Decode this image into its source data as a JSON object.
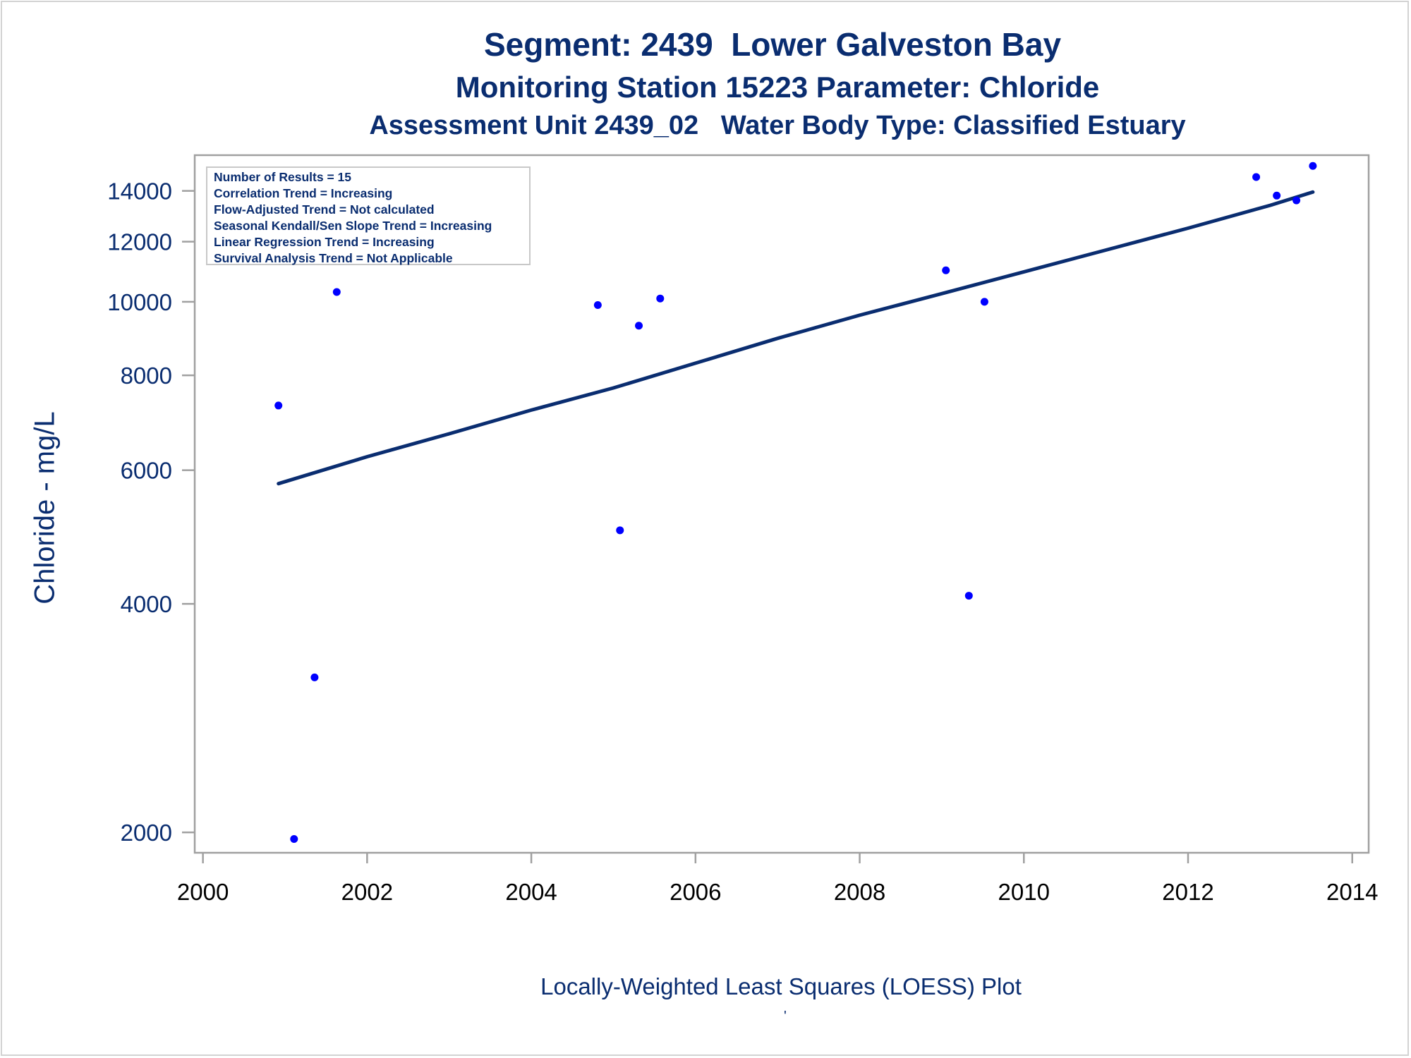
{
  "titles": {
    "line1": "Segment: 2439  Lower Galveston Bay",
    "line2": "Monitoring Station 15223 Parameter: Chloride",
    "line3": "Assessment Unit 2439_02   Water Body Type: Classified Estuary"
  },
  "stats": [
    "Number of Results = 15",
    "Correlation Trend = Increasing",
    "Flow-Adjusted Trend = Not calculated",
    "Seasonal Kendall/Sen Slope Trend = Increasing",
    "Linear Regression Trend = Increasing",
    "Survival Analysis Trend = Not Applicable"
  ],
  "caption": "Locally-Weighted Least Squares (LOESS) Plot",
  "tick_mark": "'",
  "colors": {
    "text": "#0a2d70",
    "points": "#0000ff",
    "line": "#0a2d70",
    "axis": "#a0a0a0"
  },
  "chart_data": {
    "type": "scatter",
    "title": "Segment: 2439  Lower Galveston Bay",
    "xlabel": "",
    "ylabel": "Chloride - mg/L",
    "y_scale": "log",
    "xlim": [
      1999.9,
      2014.2
    ],
    "ylim": [
      1880,
      15600
    ],
    "xticks": [
      2000,
      2002,
      2004,
      2006,
      2008,
      2010,
      2012,
      2014
    ],
    "yticks": [
      2000,
      4000,
      6000,
      8000,
      10000,
      12000,
      14000
    ],
    "grid": false,
    "series": [
      {
        "type": "scatter",
        "x": [
          2000.92,
          2001.11,
          2001.36,
          2001.63,
          2004.81,
          2005.08,
          2005.31,
          2005.57,
          2009.05,
          2009.33,
          2009.52,
          2012.83,
          2013.08,
          2013.32,
          2013.52
        ],
        "y": [
          7300,
          1960,
          3200,
          10300,
          9900,
          5000,
          9300,
          10100,
          11000,
          4100,
          10000,
          14600,
          13800,
          13600,
          15100
        ]
      },
      {
        "type": "line",
        "x": [
          2000.92,
          2002.0,
          2003.0,
          2004.0,
          2005.0,
          2006.0,
          2007.0,
          2008.0,
          2009.0,
          2010.0,
          2011.0,
          2012.0,
          2013.0,
          2013.52
        ],
        "y": [
          5760,
          6250,
          6700,
          7200,
          7700,
          8300,
          8950,
          9600,
          10250,
          10950,
          11700,
          12500,
          13400,
          13950
        ]
      }
    ]
  }
}
